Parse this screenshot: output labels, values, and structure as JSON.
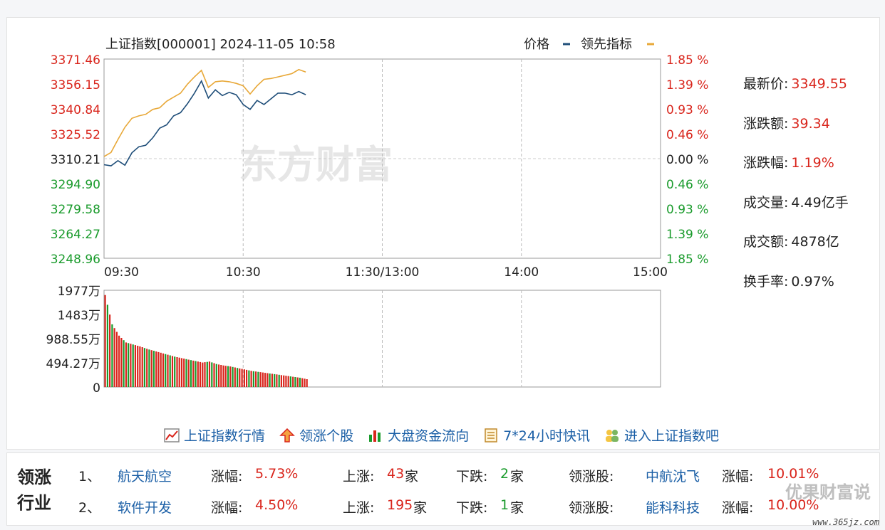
{
  "header": {
    "title": "上证指数[000001] 2024-11-05 10:58",
    "legend_price": "价格",
    "legend_leading": "领先指标"
  },
  "watermark": "东方财富",
  "colors": {
    "price_line": "#1f4e79",
    "leading_line": "#e8a838",
    "up": "#d9251c",
    "down": "#1a9b2c",
    "link": "#1b5fa6"
  },
  "stats": [
    {
      "label": "最新价:",
      "value": "3349.55",
      "color": "red"
    },
    {
      "label": "涨跌额:",
      "value": "39.34",
      "color": "red"
    },
    {
      "label": "涨跌幅:",
      "value": "1.19%",
      "color": "red"
    },
    {
      "label": "成交量:",
      "value": "4.49亿手",
      "color": "dark"
    },
    {
      "label": "成交额:",
      "value": "4878亿",
      "color": "dark"
    },
    {
      "label": "换手率:",
      "value": "0.97%",
      "color": "dark"
    }
  ],
  "links": [
    {
      "label": "上证指数行情",
      "icon": "line-chart-icon"
    },
    {
      "label": "领涨个股",
      "icon": "up-arrow-icon"
    },
    {
      "label": "大盘资金流向",
      "icon": "bar-chart-icon"
    },
    {
      "label": "7*24小时快讯",
      "icon": "news-icon"
    },
    {
      "label": "进入上证指数吧",
      "icon": "people-icon"
    }
  ],
  "industry": {
    "title": "领涨行业",
    "rows": [
      {
        "rank": "1、",
        "name": "航天航空",
        "change_label": "涨幅:",
        "change": "5.73%",
        "up_label": "上涨:",
        "up_count": "43",
        "down_label": "下跌:",
        "down_count": "2",
        "unit": "家",
        "leader_label": "领涨股:",
        "leader": "中航沈飞",
        "leader_change_label": "涨幅:",
        "leader_change": "10.01%"
      },
      {
        "rank": "2、",
        "name": "软件开发",
        "change_label": "涨幅:",
        "change": "4.50%",
        "up_label": "上涨:",
        "up_count": "195",
        "down_label": "下跌:",
        "down_count": "1",
        "unit": "家",
        "leader_label": "领涨股:",
        "leader": "能科科技",
        "leader_change_label": "涨幅:",
        "leader_change": "10.00%"
      }
    ]
  },
  "corner_watermark": "优果财富说",
  "corner_url": "www.365jz.com",
  "chart_data": [
    {
      "type": "line",
      "x_ticks": [
        "09:30",
        "10:30",
        "11:30/13:00",
        "14:00",
        "15:00"
      ],
      "y_ticks_left": [
        "3371.46",
        "3356.15",
        "3340.84",
        "3325.52",
        "3310.21",
        "3294.90",
        "3279.58",
        "3264.27",
        "3248.96"
      ],
      "y_ticks_right": [
        "1.85 %",
        "1.39 %",
        "0.93 %",
        "0.46 %",
        "0.00 %",
        "0.46 %",
        "0.93 %",
        "1.39 %",
        "1.85 %"
      ],
      "ylim": [
        3248.96,
        3371.46
      ],
      "baseline": 3310.21,
      "minutes_total": 240,
      "series": [
        {
          "name": "价格",
          "color": "#1f4e79",
          "minute": [
            0,
            3,
            6,
            9,
            12,
            15,
            18,
            21,
            24,
            27,
            30,
            33,
            36,
            39,
            42,
            45,
            48,
            51,
            54,
            57,
            60,
            63,
            66,
            69,
            72,
            75,
            78,
            81,
            84,
            87
          ],
          "values": [
            3306.5,
            3305.8,
            3309.0,
            3306.2,
            3313.8,
            3317.5,
            3318.5,
            3323.0,
            3329.0,
            3331.0,
            3336.5,
            3338.5,
            3344.0,
            3350.5,
            3358.0,
            3347.5,
            3352.5,
            3349.0,
            3351.0,
            3349.5,
            3343.5,
            3340.5,
            3346.0,
            3343.5,
            3347.0,
            3350.5,
            3350.5,
            3349.5,
            3351.5,
            3349.55
          ]
        },
        {
          "name": "领先指标",
          "color": "#e8a838",
          "minute": [
            0,
            3,
            6,
            9,
            12,
            15,
            18,
            21,
            24,
            27,
            30,
            33,
            36,
            39,
            42,
            45,
            48,
            51,
            54,
            57,
            60,
            63,
            66,
            69,
            72,
            75,
            78,
            81,
            84,
            87
          ],
          "values": [
            3311.5,
            3314.0,
            3322.0,
            3329.5,
            3335.0,
            3336.5,
            3337.5,
            3340.5,
            3341.5,
            3345.5,
            3348.0,
            3350.5,
            3356.0,
            3360.5,
            3364.5,
            3354.0,
            3357.5,
            3358.0,
            3357.5,
            3356.5,
            3355.0,
            3350.0,
            3355.0,
            3359.0,
            3359.5,
            3360.5,
            3361.5,
            3362.5,
            3365.0,
            3363.5
          ]
        }
      ]
    },
    {
      "type": "bar",
      "y_ticks": [
        "1977万",
        "1483万",
        "988.55万",
        "494.27万",
        "0"
      ],
      "ylim": [
        0,
        1977
      ],
      "unit": "万",
      "minute": [
        0,
        3,
        6,
        9,
        12,
        15,
        18,
        21,
        24,
        27,
        30,
        33,
        36,
        39,
        42,
        45,
        48,
        51,
        54,
        57,
        60,
        63,
        66,
        69,
        72,
        75,
        78,
        81,
        84,
        87
      ],
      "values": [
        1880,
        1280,
        1050,
        910,
        870,
        830,
        780,
        740,
        700,
        660,
        620,
        590,
        560,
        530,
        500,
        520,
        470,
        440,
        420,
        390,
        360,
        330,
        310,
        290,
        270,
        250,
        230,
        210,
        190,
        160
      ],
      "colors": [
        "up",
        "up",
        "down",
        "up",
        "up",
        "down",
        "up",
        "up",
        "down",
        "up",
        "up",
        "up",
        "down",
        "up",
        "up",
        "down",
        "up",
        "down",
        "up",
        "up",
        "down",
        "up",
        "up",
        "down",
        "up",
        "up",
        "down",
        "up",
        "up",
        "down"
      ]
    }
  ]
}
